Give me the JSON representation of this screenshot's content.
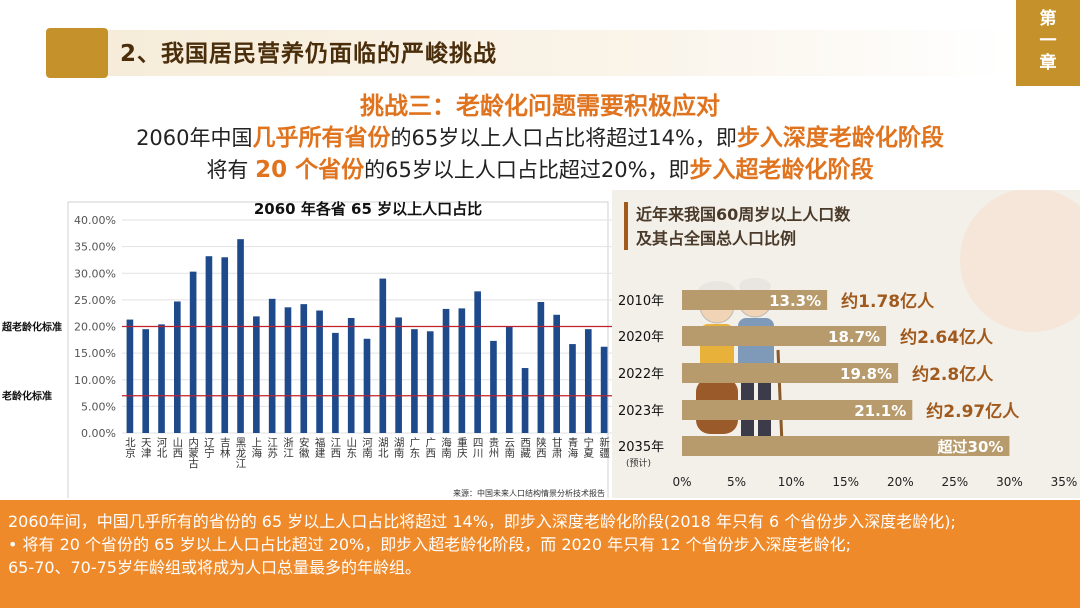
{
  "header": {
    "title": "2、我国居民营养仍面临的严峻挑战",
    "chapter": [
      "第",
      "一",
      "章"
    ]
  },
  "challenge": {
    "title": "挑战三：老龄化问题需要积极应对",
    "line1": {
      "a": "2060年中国",
      "b": "几乎所有省份",
      "c": "的65岁以上人口占比将超过14%，即",
      "d": "步入深度老龄化阶段"
    },
    "line2": {
      "a": "将有 ",
      "b": "20 个省份",
      "c": "的65岁以上人口占比超过20%，即",
      "d": "步入超老龄化阶段"
    }
  },
  "chart_data": [
    {
      "type": "bar",
      "title": "2060 年各省 65 岁以上人口占比",
      "categories": [
        "北京",
        "天津",
        "河北",
        "山西",
        "内蒙古",
        "辽宁",
        "吉林",
        "黑龙江",
        "上海",
        "江苏",
        "浙江",
        "安徽",
        "福建",
        "江西",
        "山东",
        "河南",
        "湖北",
        "湖南",
        "广东",
        "广西",
        "海南",
        "重庆",
        "四川",
        "贵州",
        "云南",
        "西藏",
        "陕西",
        "甘肃",
        "青海",
        "宁夏",
        "新疆"
      ],
      "values": [
        21.3,
        19.5,
        20.4,
        24.7,
        30.3,
        33.2,
        33.0,
        36.4,
        21.9,
        25.2,
        23.6,
        24.2,
        23.0,
        18.8,
        21.6,
        17.7,
        29.0,
        21.7,
        19.5,
        19.1,
        23.3,
        23.4,
        26.6,
        17.3,
        19.9,
        12.2,
        24.6,
        22.2,
        16.7,
        19.5,
        16.2
      ],
      "ylim": [
        0,
        40
      ],
      "yticks": [
        "0.00%",
        "5.00%",
        "10.00%",
        "15.00%",
        "20.00%",
        "25.00%",
        "30.00%",
        "35.00%",
        "40.00%"
      ],
      "reference_lines": [
        {
          "label": "超老龄化标准",
          "value": 20,
          "color": "#c0202a"
        },
        {
          "label": "老龄化标准",
          "value": 7,
          "color": "#c0202a"
        }
      ],
      "source": "来源：中国未来人口结构情景分析技术报告",
      "bar_color": "#1e4a8c"
    },
    {
      "type": "bar",
      "orientation": "horizontal",
      "title_lines": [
        "近年来我国60周岁以上人口数",
        "及其占全国总人口比例"
      ],
      "categories": [
        "2010年",
        "2020年",
        "2022年",
        "2023年",
        "2035年"
      ],
      "category_note": "(预计)",
      "values": [
        13.3,
        18.7,
        19.8,
        21.1,
        30
      ],
      "value_labels": [
        "13.3%",
        "18.7%",
        "19.8%",
        "21.1%",
        "超过30%"
      ],
      "annotations": [
        "约1.78亿人",
        "约2.64亿人",
        "约2.8亿人",
        "约2.97亿人",
        ""
      ],
      "xlim": [
        0,
        35
      ],
      "xticks": [
        "0%",
        "5%",
        "10%",
        "15%",
        "20%",
        "25%",
        "30%",
        "35%"
      ],
      "bar_color": "#b79b6c",
      "accent_color": "#a05a1e"
    }
  ],
  "footer": {
    "p1": "2060年间，中国几乎所有的省份的 65 岁以上人口占比将超过 14%，即步入深度老龄化阶段(2018 年只有 6 个省份步入深度老龄化);",
    "p2": "• 将有 20 个省份的 65 岁以上人口占比超过 20%，即步入超老龄化阶段，而 2020 年只有 12 个省份步入深度老龄化;",
    "p3": "65-70、70-75岁年龄组或将成为人口总量最多的年龄组。"
  }
}
